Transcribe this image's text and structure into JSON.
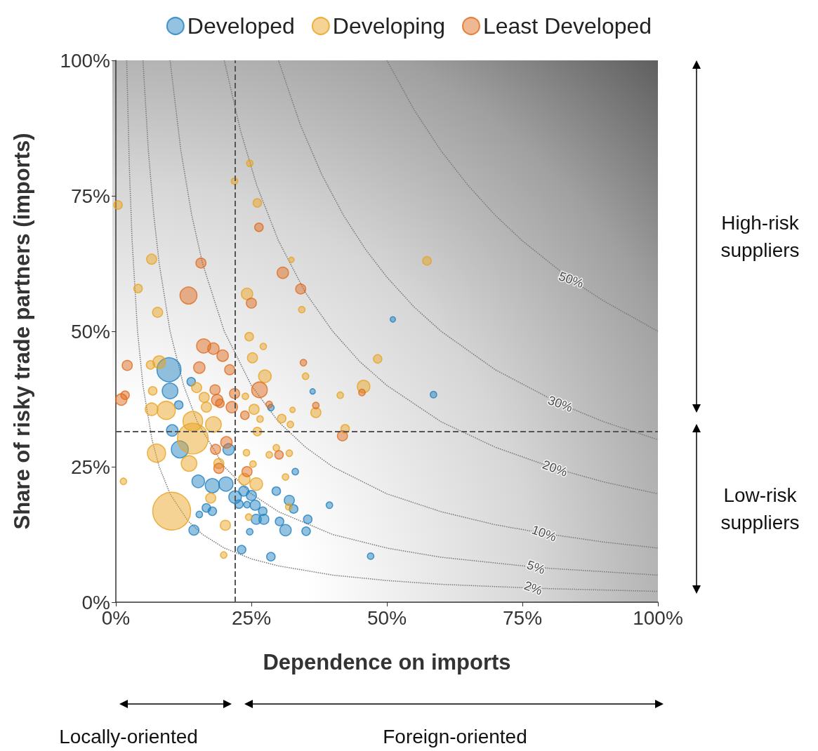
{
  "chart_data": {
    "type": "bubble",
    "xlabel": "Dependence on imports",
    "ylabel": "Share of risky trade partners (imports)",
    "legend": "top",
    "marker": "circle",
    "xlim": [
      0,
      100
    ],
    "ylim": [
      0,
      100
    ],
    "xticks": [
      {
        "value": 0,
        "label": "0%"
      },
      {
        "value": 25,
        "label": "25%"
      },
      {
        "value": 50,
        "label": "50%"
      },
      {
        "value": 75,
        "label": "75%"
      },
      {
        "value": 100,
        "label": "100%"
      }
    ],
    "yticks": [
      {
        "value": 0,
        "label": "0%"
      },
      {
        "value": 25,
        "label": "25%"
      },
      {
        "value": 50,
        "label": "50%"
      },
      {
        "value": 75,
        "label": "75%"
      },
      {
        "value": 100,
        "label": "100%"
      }
    ],
    "ref_lines": [
      {
        "axis": "x",
        "value": 22,
        "color": "#555555",
        "line_style": "dashed"
      },
      {
        "axis": "y",
        "value": 31.5,
        "color": "#555555",
        "line_style": "dashed"
      }
    ],
    "annotations": [
      {
        "text": "50%",
        "x": 84,
        "y": 59.5
      },
      {
        "text": "30%",
        "x": 82,
        "y": 36.6
      },
      {
        "text": "20%",
        "x": 81,
        "y": 24.7
      },
      {
        "text": "10%",
        "x": 79,
        "y": 12.7
      },
      {
        "text": "5%",
        "x": 77.5,
        "y": 6.45
      },
      {
        "text": "2%",
        "x": 77,
        "y": 2.6
      },
      "High-risk suppliers",
      "Low-risk suppliers",
      "Locally-oriented",
      "Foreign-oriented"
    ],
    "series": [
      {
        "name": "Developed",
        "color": "#1f7fc0",
        "x": [
          9.8,
          10,
          13.9,
          11.6,
          10.4,
          11.8,
          15.2,
          17.8,
          20.3,
          20.8,
          14.4,
          16.7,
          17.8,
          15.4,
          22,
          23.6,
          22.7,
          24.2,
          25,
          25.7,
          24.7,
          23.2,
          25.9,
          27.1,
          27.3,
          29.6,
          32,
          32.8,
          30.2,
          31.3,
          35.4,
          35.1,
          28.6,
          33.1,
          39.4,
          47,
          36.3,
          28.6,
          51.1,
          58.6
        ],
        "values": [
          42.9,
          39,
          40.7,
          36.4,
          31.7,
          28.2,
          22.3,
          21.5,
          21.8,
          28.2,
          13.3,
          17.4,
          16.8,
          16.2,
          19.4,
          20.5,
          18.1,
          18,
          19.7,
          17.9,
          13,
          9.7,
          15.3,
          16.8,
          15.3,
          20.5,
          18.8,
          17.2,
          14.9,
          13.3,
          15.3,
          13.1,
          8.4,
          24.1,
          17.9,
          8.5,
          38.9,
          35.9,
          52.2,
          38.3
        ],
        "sizes": [
          0.4,
          0.17,
          0.05,
          0.05,
          0.09,
          0.2,
          0.11,
          0.14,
          0.14,
          0.09,
          0.07,
          0.05,
          0.05,
          0.03,
          0.11,
          0.07,
          0.05,
          0.03,
          0.07,
          0.07,
          0.03,
          0.05,
          0.07,
          0.05,
          0.07,
          0.05,
          0.07,
          0.05,
          0.05,
          0.09,
          0.05,
          0.05,
          0.05,
          0.03,
          0.03,
          0.03,
          0.02,
          0.03,
          0.02,
          0.03
        ]
      },
      {
        "name": "Developing",
        "color": "#e8a320",
        "x": [
          10.3,
          14.2,
          14.2,
          9.3,
          7.5,
          13.5,
          18,
          6.6,
          6.8,
          6.4,
          8,
          4.1,
          7.7,
          6.6,
          0.4,
          1.4,
          16.3,
          16.7,
          14.9,
          19,
          17.5,
          20.2,
          19.9,
          21.9,
          24.7,
          26.1,
          24.2,
          24.6,
          25.2,
          27.2,
          27.5,
          25.5,
          23.9,
          26.6,
          26.1,
          24.1,
          25.3,
          23.7,
          25.9,
          28.3,
          30.6,
          32.2,
          32,
          31.3,
          31.9,
          24.5,
          32.4,
          34.3,
          35,
          36.9,
          42.3,
          41.4,
          45.7,
          48.3,
          57.4,
          32.6,
          29.6
        ],
        "values": [
          16.8,
          30.2,
          33.4,
          35.4,
          27.5,
          25.6,
          32.8,
          35.6,
          39,
          43.8,
          44.3,
          57.9,
          53.5,
          63.3,
          73.3,
          22.3,
          37.8,
          36,
          39.6,
          25.6,
          19.2,
          14.2,
          8.7,
          77.7,
          81,
          73.7,
          56.9,
          49,
          45.1,
          47.2,
          41.7,
          35.6,
          38,
          33.8,
          31.5,
          27.6,
          25.5,
          22.7,
          21.8,
          27.2,
          33.9,
          32.8,
          27.5,
          23.1,
          17.6,
          15.7,
          63.2,
          54,
          41.7,
          35,
          32,
          38.2,
          39.8,
          44.9,
          63,
          35.5,
          28.5
        ],
        "sizes": [
          1,
          0.66,
          0.27,
          0.23,
          0.23,
          0.17,
          0.17,
          0.11,
          0.05,
          0.05,
          0.11,
          0.05,
          0.07,
          0.07,
          0.05,
          0.03,
          0.07,
          0.07,
          0.07,
          0.07,
          0.07,
          0.07,
          0.03,
          0.03,
          0.03,
          0.05,
          0.09,
          0.05,
          0.07,
          0.03,
          0.11,
          0.07,
          0.03,
          0.03,
          0.05,
          0.03,
          0.03,
          0.09,
          0.11,
          0.03,
          0.05,
          0.03,
          0.03,
          0.03,
          0.03,
          0.03,
          0.02,
          0.03,
          0.03,
          0.07,
          0.05,
          0.03,
          0.11,
          0.05,
          0.05,
          0.02,
          0.03
        ]
      },
      {
        "name": "Least Developed",
        "color": "#e06a1c",
        "x": [
          13.4,
          15.7,
          16.2,
          18,
          19.7,
          15.4,
          21,
          2.1,
          1,
          1.7,
          25,
          26.4,
          30.8,
          34.1,
          34.6,
          26.5,
          21.9,
          21.4,
          23.8,
          28.3,
          36.9,
          18.3,
          18.7,
          18.4,
          20.4,
          19,
          24.2,
          30.1,
          41.8,
          45.4,
          19.2
        ],
        "values": [
          56.6,
          62.6,
          47.3,
          46.8,
          45.5,
          43.3,
          42.9,
          43.7,
          37.4,
          38.2,
          55.2,
          69.2,
          60.8,
          57.8,
          44.2,
          39.2,
          38.5,
          36,
          34.5,
          36.5,
          36.3,
          39.2,
          37.3,
          28.2,
          29.5,
          24.7,
          24.1,
          27.2,
          30.7,
          38.7,
          36.7
        ],
        "sizes": [
          0.2,
          0.07,
          0.14,
          0.09,
          0.09,
          0.09,
          0.07,
          0.07,
          0.09,
          0.05,
          0.07,
          0.05,
          0.09,
          0.07,
          0.03,
          0.17,
          0.07,
          0.09,
          0.05,
          0.03,
          0.03,
          0.07,
          0.09,
          0.07,
          0.09,
          0.07,
          0.07,
          0.05,
          0.07,
          0.03,
          0.05
        ]
      },
      {
        "type": "line",
        "color": "#777777",
        "line_style": "dotted",
        "marker": "none",
        "x": [
          2,
          2.5,
          3,
          4,
          5,
          6.67,
          8,
          10,
          13.3,
          16,
          20,
          25,
          30,
          40,
          50,
          60,
          77,
          80,
          100
        ],
        "values": [
          100,
          80,
          66.7,
          50,
          40,
          30,
          25,
          20,
          15,
          12.5,
          10,
          8,
          6.7,
          5,
          4,
          3.3,
          2.6,
          2.5,
          2
        ]
      },
      {
        "type": "line",
        "color": "#777777",
        "line_style": "dotted",
        "marker": "none",
        "x": [
          5,
          6,
          7,
          8,
          10,
          12.5,
          15,
          20,
          25,
          30,
          40,
          50,
          60,
          77.5,
          80,
          100
        ],
        "values": [
          100,
          83.3,
          71.4,
          62.5,
          50,
          40,
          33.3,
          25,
          20,
          16.7,
          12.5,
          10,
          8.3,
          6.45,
          6.25,
          5
        ]
      },
      {
        "type": "line",
        "color": "#777777",
        "line_style": "dotted",
        "marker": "none",
        "x": [
          10,
          12,
          14,
          16,
          20,
          25,
          30,
          35,
          40,
          50,
          60,
          70,
          79,
          90,
          100
        ],
        "values": [
          100,
          83.3,
          71.4,
          62.5,
          50,
          40,
          33.3,
          28.6,
          25,
          20,
          16.7,
          14.3,
          12.7,
          11.1,
          10
        ]
      },
      {
        "type": "line",
        "color": "#777777",
        "line_style": "dotted",
        "marker": "none",
        "x": [
          20,
          23,
          26,
          30,
          35,
          40,
          45,
          50,
          60,
          70,
          81,
          90,
          100
        ],
        "values": [
          100,
          87,
          76.9,
          66.7,
          57.1,
          50,
          44.4,
          40,
          33.3,
          28.6,
          24.7,
          22.2,
          20
        ]
      },
      {
        "type": "line",
        "color": "#777777",
        "line_style": "dotted",
        "marker": "none",
        "x": [
          30,
          34,
          38,
          42,
          46,
          50,
          55,
          60,
          70,
          82,
          90,
          100
        ],
        "values": [
          100,
          88.2,
          78.9,
          71.4,
          65.2,
          60,
          54.5,
          50,
          42.9,
          36.6,
          33.3,
          30
        ]
      },
      {
        "type": "line",
        "color": "#777777",
        "line_style": "dotted",
        "marker": "none",
        "x": [
          50,
          55,
          60,
          65,
          70,
          75,
          84,
          90,
          100
        ],
        "values": [
          100,
          90.9,
          83.3,
          76.9,
          71.4,
          66.7,
          59.5,
          55.6,
          50
        ]
      }
    ]
  }
}
